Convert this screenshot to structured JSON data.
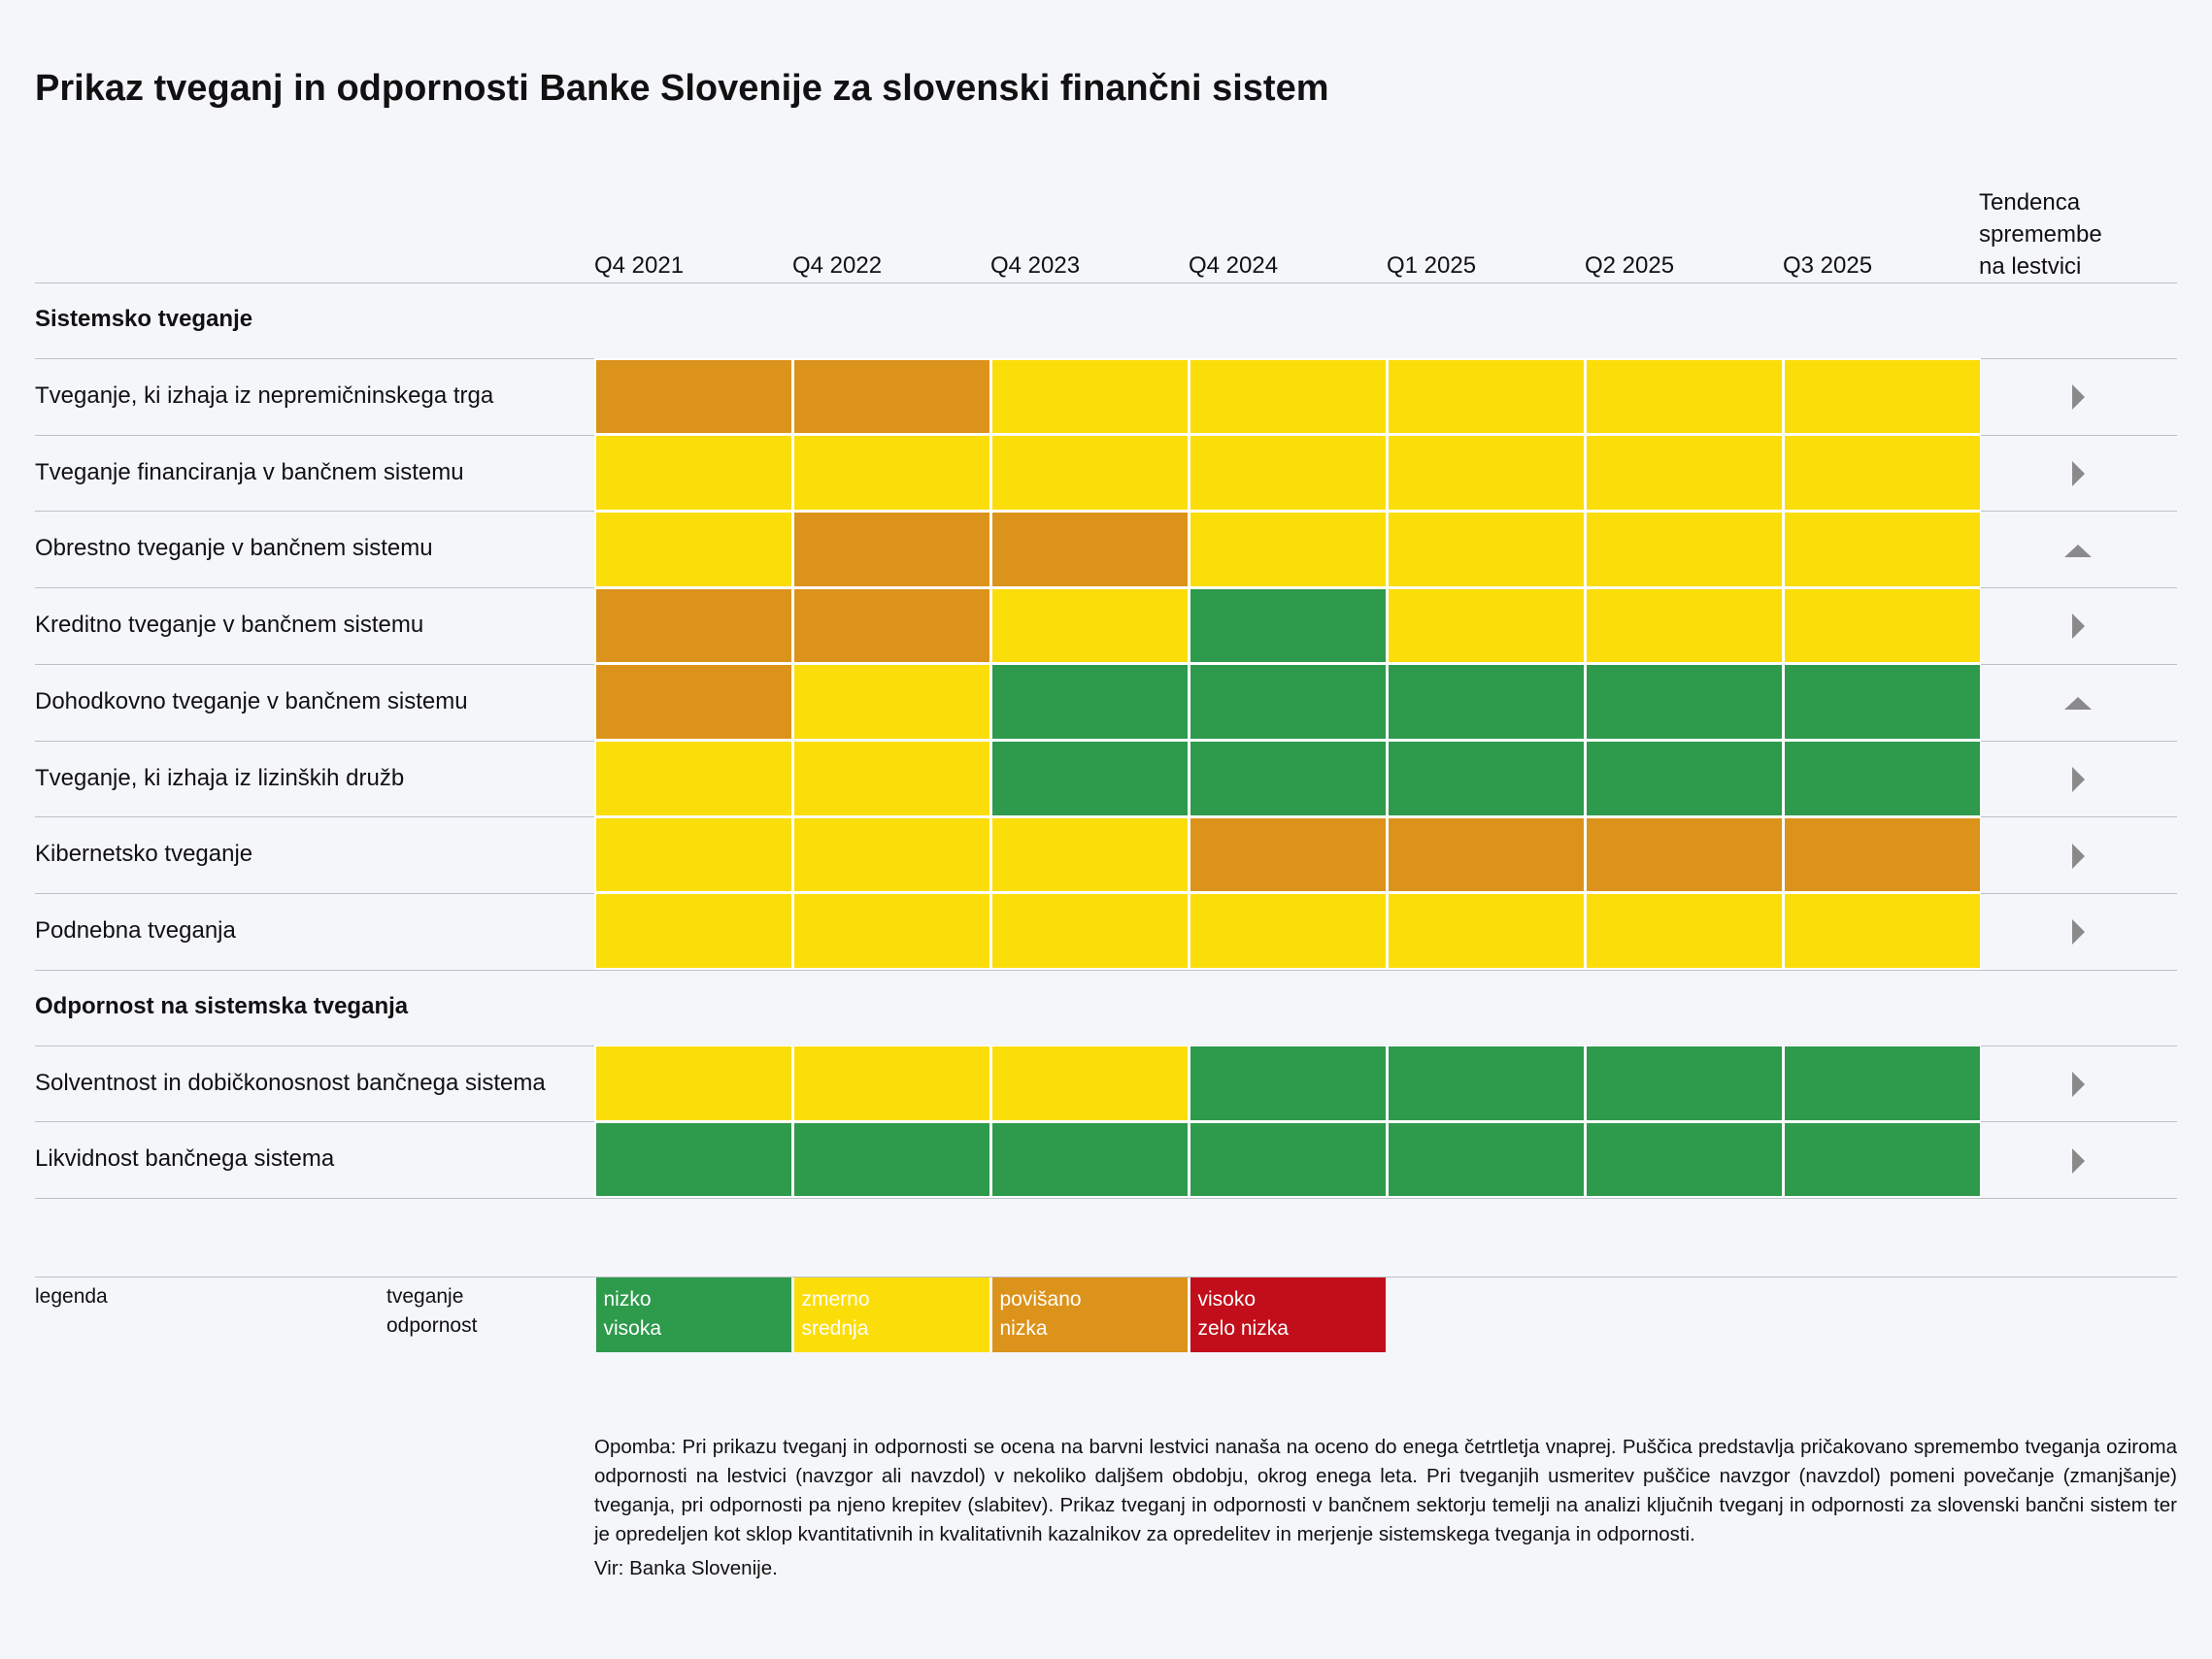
{
  "title": "Prikaz tveganj in odpornosti Banke Slovenije za slovenski finančni sistem",
  "columns": [
    "Q4 2021",
    "Q4 2022",
    "Q4 2023",
    "Q4 2024",
    "Q1 2025",
    "Q2 2025",
    "Q3 2025"
  ],
  "trend_header": [
    "Tendenca",
    "spremembe",
    "na lestvici"
  ],
  "sections": [
    {
      "title": "Sistemsko tveganje",
      "rows": [
        {
          "label": "Tveganje, ki izhaja iz nepremičninskega trga",
          "cells": [
            "#dc931b",
            "#dc931b",
            "#fbdd0a",
            "#fbdd0a",
            "#fbdd0a",
            "#fbdd0a",
            "#fbdd0a"
          ],
          "trend": "right"
        },
        {
          "label": "Tveganje financiranja v bančnem sistemu",
          "cells": [
            "#fbdd0a",
            "#fbdd0a",
            "#fbdd0a",
            "#fbdd0a",
            "#fbdd0a",
            "#fbdd0a",
            "#fbdd0a"
          ],
          "trend": "right"
        },
        {
          "label": "Obrestno tveganje v bančnem sistemu",
          "cells": [
            "#fbdd0a",
            "#dc931b",
            "#dc931b",
            "#fbdd0a",
            "#fbdd0a",
            "#fbdd0a",
            "#fbdd0a"
          ],
          "trend": "up"
        },
        {
          "label": "Kreditno tveganje v bančnem sistemu",
          "cells": [
            "#dc931b",
            "#dc931b",
            "#fbdd0a",
            "#2e9a4c",
            "#fbdd0a",
            "#fbdd0a",
            "#fbdd0a"
          ],
          "trend": "right"
        },
        {
          "label": "Dohodkovno tveganje v bančnem sistemu",
          "cells": [
            "#dc931b",
            "#fbdd0a",
            "#2e9a4c",
            "#2e9a4c",
            "#2e9a4c",
            "#2e9a4c",
            "#2e9a4c"
          ],
          "trend": "up"
        },
        {
          "label": "Tveganje, ki izhaja iz lizinških družb",
          "cells": [
            "#fbdd0a",
            "#fbdd0a",
            "#2e9a4c",
            "#2e9a4c",
            "#2e9a4c",
            "#2e9a4c",
            "#2e9a4c"
          ],
          "trend": "right"
        },
        {
          "label": "Kibernetsko tveganje",
          "cells": [
            "#fbdd0a",
            "#fbdd0a",
            "#fbdd0a",
            "#dc931b",
            "#dc931b",
            "#dc931b",
            "#dc931b"
          ],
          "trend": "right"
        },
        {
          "label": "Podnebna tveganja",
          "cells": [
            "#fbdd0a",
            "#fbdd0a",
            "#fbdd0a",
            "#fbdd0a",
            "#fbdd0a",
            "#fbdd0a",
            "#fbdd0a"
          ],
          "trend": "right"
        }
      ]
    },
    {
      "title": "Odpornost na sistemska tveganja",
      "rows": [
        {
          "label": "Solventnost in dobičkonosnost bančnega sistema",
          "cells": [
            "#fbdd0a",
            "#fbdd0a",
            "#fbdd0a",
            "#2e9a4c",
            "#2e9a4c",
            "#2e9a4c",
            "#2e9a4c"
          ],
          "trend": "right"
        },
        {
          "label": "Likvidnost bančnega sistema",
          "cells": [
            "#2e9a4c",
            "#2e9a4c",
            "#2e9a4c",
            "#2e9a4c",
            "#2e9a4c",
            "#2e9a4c",
            "#2e9a4c"
          ],
          "trend": "right"
        }
      ]
    }
  ],
  "legend": {
    "title": "legenda",
    "kinds": [
      "tveganje",
      "odpornost"
    ],
    "items": [
      {
        "color": "#2e9a4c",
        "risk": "nizko",
        "resilience": "visoka"
      },
      {
        "color": "#fbdd0a",
        "risk": "zmerno",
        "resilience": "srednja"
      },
      {
        "color": "#dc931b",
        "risk": "povišano",
        "resilience": "nizka"
      },
      {
        "color": "#c20e1a",
        "risk": "visoko",
        "resilience": "zelo nizka"
      }
    ]
  },
  "note": "Opomba: Pri prikazu tveganj in odpornosti se ocena na barvni lestvici nanaša na oceno do enega četrtletja vnaprej. Puščica predstavlja pričakovano spremembo tveganja oziroma odpornosti na lestvici (navzgor ali navzdol) v nekoliko daljšem obdobju, okrog enega leta. Pri tveganjih usmeritev puščice navzgor (navzdol) pomeni povečanje (zmanjšanje) tveganja, pri odpornosti pa njeno krepitev (slabitev). Prikaz tveganj in odpornosti v bančnem sektorju temelji na analizi ključnih tveganj in odpornosti za slovenski bančni sistem ter je opredeljen kot sklop kvantitativnih in kvalitativnih kazalnikov za opredelitev in merjenje sistemskega tveganja in odpornosti.",
  "source": "Vir: Banka Slovenije."
}
